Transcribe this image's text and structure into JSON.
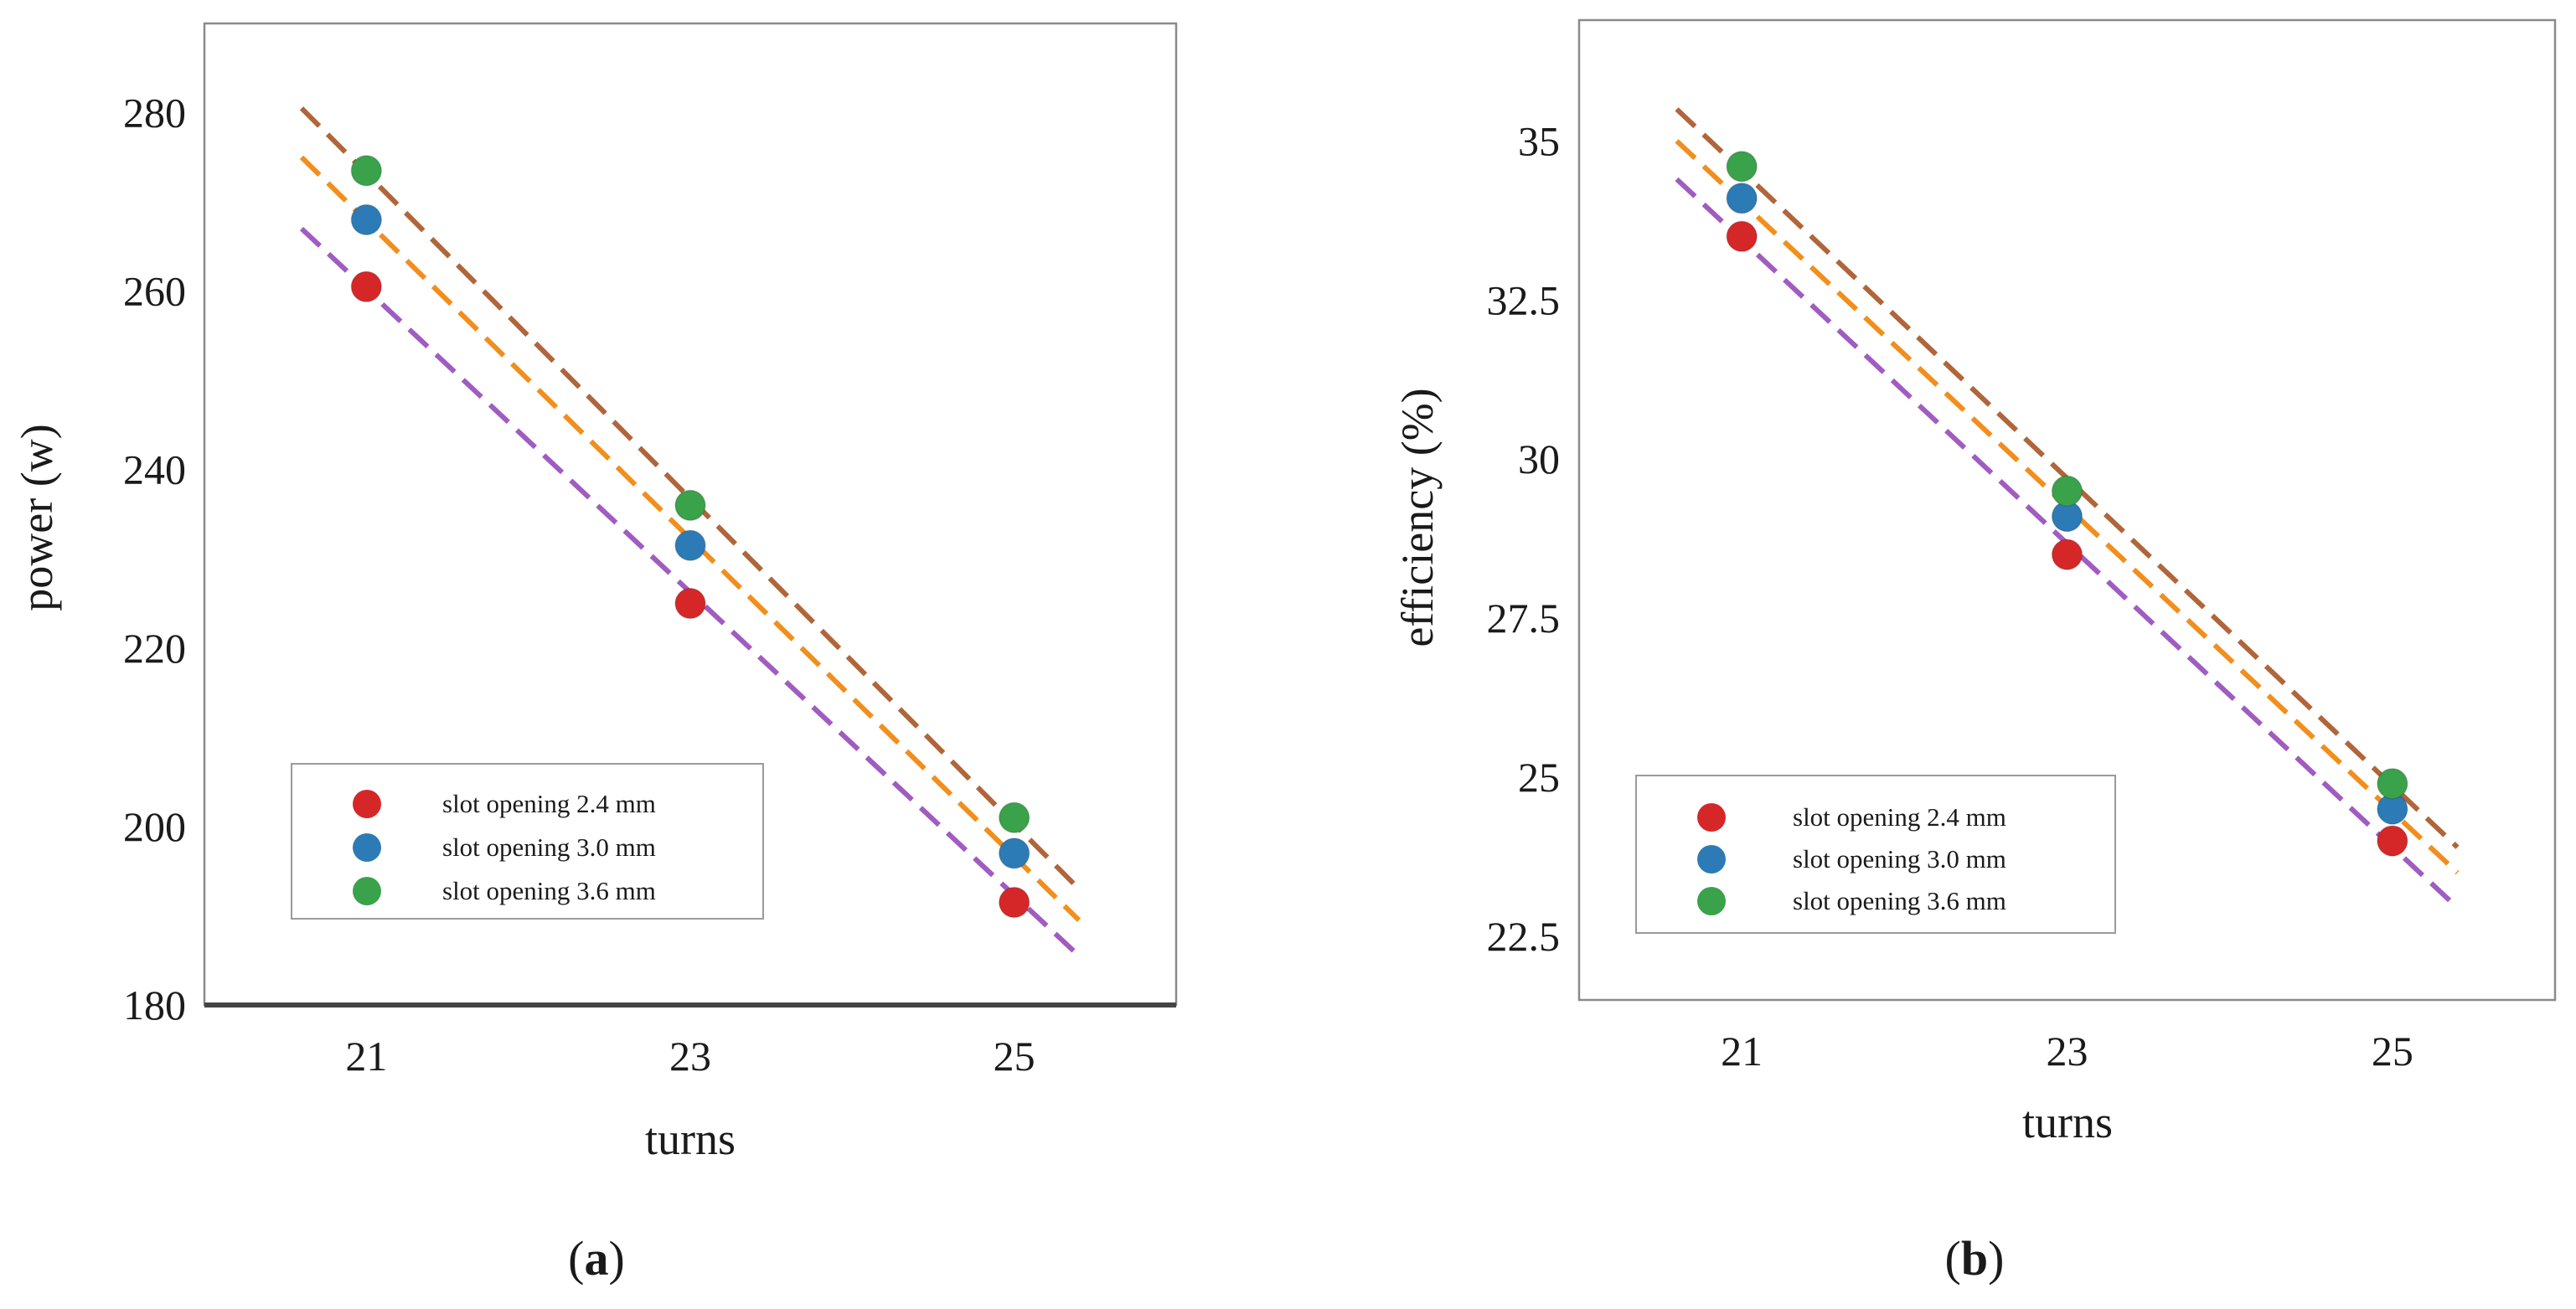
{
  "figure": {
    "panels": [
      {
        "letter": "a",
        "open": "(",
        "close": ")"
      },
      {
        "letter": "b",
        "open": "(",
        "close": ")"
      }
    ]
  },
  "colors": {
    "red": "#d62728",
    "blue": "#2c7bb6",
    "green": "#3aa24a",
    "brown": "#b0653a",
    "orange": "#f28e1c",
    "purple": "#a05cc0"
  },
  "chart_data": [
    {
      "type": "scatter",
      "title": "",
      "xlabel": "turns",
      "ylabel": "power (w)",
      "x": [
        21,
        23,
        25
      ],
      "xticks": [
        "21",
        "23",
        "25"
      ],
      "xlim": [
        20,
        26
      ],
      "ylim": [
        180,
        290
      ],
      "yticks": [
        180,
        200,
        220,
        240,
        260,
        280
      ],
      "ytick_labels": [
        "180",
        "200",
        "220",
        "240",
        "260",
        "280"
      ],
      "bottom_spine": "bold",
      "series": [
        {
          "name": "slot opening 2.4 mm",
          "color": "red",
          "values": [
            260.5,
            225,
            191.5
          ]
        },
        {
          "name": "slot opening 3.0 mm",
          "color": "blue",
          "values": [
            268,
            231.5,
            197
          ]
        },
        {
          "name": "slot opening 3.6 mm",
          "color": "green",
          "values": [
            273.5,
            236,
            201
          ]
        }
      ],
      "fit_lines": [
        {
          "color": "brown",
          "x": [
            20.6,
            25.4
          ],
          "y": [
            280.5,
            193
          ]
        },
        {
          "color": "orange",
          "x": [
            20.6,
            25.4
          ],
          "y": [
            275,
            189.5
          ]
        },
        {
          "color": "purple",
          "x": [
            20.6,
            25.4
          ],
          "y": [
            267,
            185.5
          ]
        }
      ],
      "legend_placement": "lower-left"
    },
    {
      "type": "scatter",
      "title": "",
      "xlabel": "turns",
      "ylabel": "efficiency (%)",
      "x": [
        21,
        23,
        25
      ],
      "xticks": [
        "21",
        "23",
        "25"
      ],
      "xlim": [
        20,
        26
      ],
      "ylim": [
        21.5,
        36.9
      ],
      "yticks": [
        22.5,
        25,
        27.5,
        30,
        32.5,
        35
      ],
      "ytick_labels": [
        "22.5",
        "25",
        "27.5",
        "30",
        "32.5",
        "35"
      ],
      "bottom_spine": "thin",
      "series": [
        {
          "name": "slot opening 2.4 mm",
          "color": "red",
          "values": [
            33.5,
            28.5,
            24.0
          ]
        },
        {
          "name": "slot opening 3.0 mm",
          "color": "blue",
          "values": [
            34.1,
            29.1,
            24.5
          ]
        },
        {
          "name": "slot opening 3.6 mm",
          "color": "green",
          "values": [
            34.6,
            29.5,
            24.9
          ]
        }
      ],
      "fit_lines": [
        {
          "color": "brown",
          "x": [
            20.6,
            25.4
          ],
          "y": [
            35.5,
            23.9
          ]
        },
        {
          "color": "orange",
          "x": [
            20.6,
            25.4
          ],
          "y": [
            35.0,
            23.5
          ]
        },
        {
          "color": "purple",
          "x": [
            20.6,
            25.4
          ],
          "y": [
            34.4,
            22.95
          ]
        }
      ],
      "legend_placement": "lower-left"
    }
  ]
}
